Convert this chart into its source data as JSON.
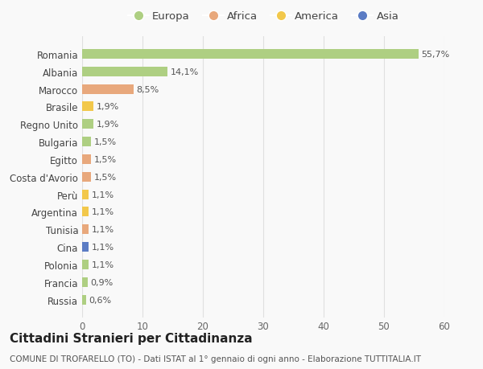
{
  "countries": [
    "Romania",
    "Albania",
    "Marocco",
    "Brasile",
    "Regno Unito",
    "Bulgaria",
    "Egitto",
    "Costa d'Avorio",
    "Perù",
    "Argentina",
    "Tunisia",
    "Cina",
    "Polonia",
    "Francia",
    "Russia"
  ],
  "values": [
    55.7,
    14.1,
    8.5,
    1.9,
    1.9,
    1.5,
    1.5,
    1.5,
    1.1,
    1.1,
    1.1,
    1.1,
    1.1,
    0.9,
    0.6
  ],
  "labels": [
    "55,7%",
    "14,1%",
    "8,5%",
    "1,9%",
    "1,9%",
    "1,5%",
    "1,5%",
    "1,5%",
    "1,1%",
    "1,1%",
    "1,1%",
    "1,1%",
    "1,1%",
    "0,9%",
    "0,6%"
  ],
  "colors": [
    "#aecf82",
    "#aecf82",
    "#e8a87c",
    "#f2c84b",
    "#aecf82",
    "#aecf82",
    "#e8a87c",
    "#e8a87c",
    "#f2c84b",
    "#f2c84b",
    "#e8a87c",
    "#5b7cc4",
    "#aecf82",
    "#aecf82",
    "#aecf82"
  ],
  "legend_labels": [
    "Europa",
    "Africa",
    "America",
    "Asia"
  ],
  "legend_colors": [
    "#aecf82",
    "#e8a87c",
    "#f2c84b",
    "#5b7cc4"
  ],
  "title": "Cittadini Stranieri per Cittadinanza",
  "subtitle": "COMUNE DI TROFARELLO (TO) - Dati ISTAT al 1° gennaio di ogni anno - Elaborazione TUTTITALIA.IT",
  "xlim": [
    0,
    60
  ],
  "xticks": [
    0,
    10,
    20,
    30,
    40,
    50,
    60
  ],
  "background_color": "#f9f9f9",
  "grid_color": "#e0e0e0",
  "bar_height": 0.55,
  "title_fontsize": 11,
  "subtitle_fontsize": 7.5,
  "label_fontsize": 8,
  "tick_fontsize": 8.5,
  "legend_fontsize": 9.5
}
